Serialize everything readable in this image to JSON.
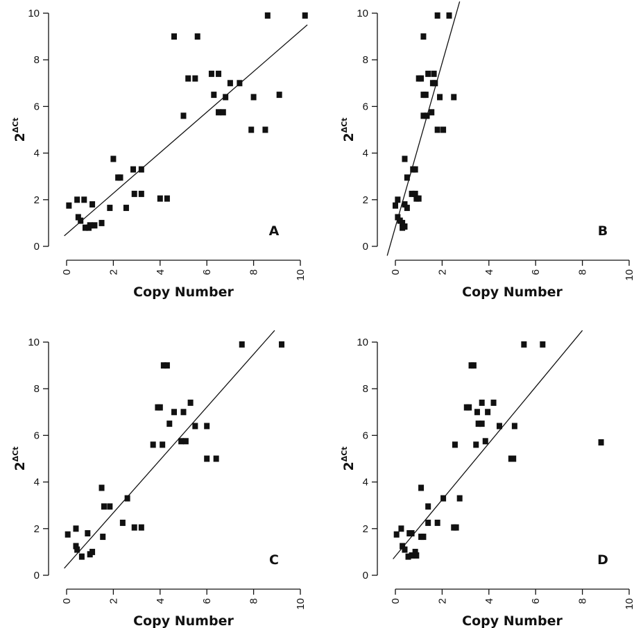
{
  "chart_data": [
    {
      "type": "scatter",
      "panel_label": "A",
      "xlabel": "Copy Number",
      "ylabel_base": "2",
      "ylabel_superscript": "ΔCt",
      "xlim": [
        0,
        10
      ],
      "ylim": [
        0,
        10
      ],
      "xticks": [
        "0",
        "2",
        "4",
        "6",
        "8",
        "10"
      ],
      "yticks": [
        "0",
        "2",
        "4",
        "6",
        "8",
        "10"
      ],
      "grid": false,
      "fit_line": {
        "x": [
          -0.1,
          10.3
        ],
        "y": [
          0.45,
          9.5
        ]
      },
      "points": [
        [
          0.1,
          1.75
        ],
        [
          0.45,
          2.0
        ],
        [
          0.5,
          1.25
        ],
        [
          0.6,
          1.1
        ],
        [
          0.75,
          2.0
        ],
        [
          0.8,
          0.8
        ],
        [
          0.95,
          0.8
        ],
        [
          1.0,
          0.9
        ],
        [
          1.1,
          1.8
        ],
        [
          1.2,
          0.9
        ],
        [
          1.5,
          1.0
        ],
        [
          1.85,
          1.65
        ],
        [
          2.0,
          3.75
        ],
        [
          2.2,
          2.95
        ],
        [
          2.3,
          2.95
        ],
        [
          2.55,
          1.65
        ],
        [
          2.85,
          3.3
        ],
        [
          2.9,
          2.25
        ],
        [
          3.2,
          3.3
        ],
        [
          3.2,
          2.25
        ],
        [
          4.0,
          2.05
        ],
        [
          4.3,
          2.05
        ],
        [
          4.6,
          9.0
        ],
        [
          5.0,
          5.6
        ],
        [
          5.2,
          7.2
        ],
        [
          5.5,
          7.2
        ],
        [
          5.6,
          9.0
        ],
        [
          6.2,
          7.4
        ],
        [
          6.3,
          6.5
        ],
        [
          6.5,
          7.4
        ],
        [
          6.5,
          5.75
        ],
        [
          6.7,
          5.75
        ],
        [
          6.8,
          6.4
        ],
        [
          7.0,
          7.0
        ],
        [
          7.4,
          7.0
        ],
        [
          7.9,
          5.0
        ],
        [
          8.0,
          6.4
        ],
        [
          8.5,
          5.0
        ],
        [
          8.6,
          9.9
        ],
        [
          9.1,
          6.5
        ],
        [
          10.2,
          9.9
        ]
      ]
    },
    {
      "type": "scatter",
      "panel_label": "B",
      "xlabel": "Copy Number",
      "ylabel_base": "2",
      "ylabel_superscript": "ΔCt",
      "xlim": [
        0,
        10
      ],
      "ylim": [
        0,
        10
      ],
      "xticks": [
        "0",
        "2",
        "4",
        "6",
        "8",
        "10"
      ],
      "yticks": [
        "0",
        "2",
        "4",
        "6",
        "8",
        "10"
      ],
      "grid": false,
      "fit_line": {
        "x": [
          -0.35,
          2.75
        ],
        "y": [
          -0.4,
          10.5
        ]
      },
      "points": [
        [
          0.0,
          1.75
        ],
        [
          0.1,
          2.0
        ],
        [
          0.1,
          1.25
        ],
        [
          0.2,
          1.1
        ],
        [
          0.3,
          0.8
        ],
        [
          0.3,
          1.0
        ],
        [
          0.4,
          1.8
        ],
        [
          0.4,
          0.85
        ],
        [
          0.4,
          3.75
        ],
        [
          0.5,
          2.95
        ],
        [
          0.5,
          1.65
        ],
        [
          0.7,
          2.25
        ],
        [
          0.75,
          3.3
        ],
        [
          0.85,
          2.25
        ],
        [
          0.85,
          3.3
        ],
        [
          0.9,
          2.05
        ],
        [
          1.0,
          2.05
        ],
        [
          1.0,
          7.2
        ],
        [
          1.1,
          7.2
        ],
        [
          1.2,
          9.0
        ],
        [
          1.2,
          6.5
        ],
        [
          1.2,
          5.6
        ],
        [
          1.3,
          6.5
        ],
        [
          1.35,
          5.6
        ],
        [
          1.4,
          7.4
        ],
        [
          1.55,
          5.75
        ],
        [
          1.6,
          7.0
        ],
        [
          1.65,
          7.4
        ],
        [
          1.7,
          7.0
        ],
        [
          1.8,
          9.9
        ],
        [
          1.8,
          5.0
        ],
        [
          1.9,
          6.4
        ],
        [
          2.05,
          5.0
        ],
        [
          2.3,
          9.9
        ],
        [
          2.5,
          6.4
        ]
      ]
    },
    {
      "type": "scatter",
      "panel_label": "C",
      "xlabel": "Copy Number",
      "ylabel_base": "2",
      "ylabel_superscript": "ΔCt",
      "xlim": [
        0,
        10
      ],
      "ylim": [
        0,
        10
      ],
      "xticks": [
        "0",
        "2",
        "4",
        "6",
        "8",
        "10"
      ],
      "yticks": [
        "0",
        "2",
        "4",
        "6",
        "8",
        "10"
      ],
      "grid": false,
      "fit_line": {
        "x": [
          -0.1,
          8.9
        ],
        "y": [
          0.3,
          10.5
        ]
      },
      "points": [
        [
          0.05,
          1.75
        ],
        [
          0.4,
          2.0
        ],
        [
          0.4,
          1.25
        ],
        [
          0.45,
          1.1
        ],
        [
          0.65,
          0.8
        ],
        [
          0.9,
          1.8
        ],
        [
          1.0,
          0.9
        ],
        [
          1.1,
          1.0
        ],
        [
          1.5,
          3.75
        ],
        [
          1.55,
          1.65
        ],
        [
          1.6,
          2.95
        ],
        [
          1.85,
          2.95
        ],
        [
          2.4,
          2.25
        ],
        [
          2.6,
          3.3
        ],
        [
          2.9,
          2.05
        ],
        [
          3.2,
          2.05
        ],
        [
          3.7,
          5.6
        ],
        [
          3.9,
          7.2
        ],
        [
          4.0,
          7.2
        ],
        [
          4.1,
          5.6
        ],
        [
          4.15,
          9.0
        ],
        [
          4.3,
          9.0
        ],
        [
          4.4,
          6.5
        ],
        [
          4.6,
          7.0
        ],
        [
          4.9,
          5.75
        ],
        [
          5.0,
          7.0
        ],
        [
          5.1,
          5.75
        ],
        [
          5.3,
          7.4
        ],
        [
          5.5,
          6.4
        ],
        [
          6.0,
          6.4
        ],
        [
          6.0,
          5.0
        ],
        [
          6.4,
          5.0
        ],
        [
          7.5,
          9.9
        ],
        [
          9.2,
          9.9
        ]
      ]
    },
    {
      "type": "scatter",
      "panel_label": "D",
      "xlabel": "Copy Number",
      "ylabel_base": "2",
      "ylabel_superscript": "ΔCt",
      "xlim": [
        0,
        10
      ],
      "ylim": [
        0,
        10
      ],
      "xticks": [
        "0",
        "2",
        "4",
        "6",
        "8",
        "10"
      ],
      "yticks": [
        "0",
        "2",
        "4",
        "6",
        "8",
        "10"
      ],
      "grid": false,
      "fit_line": {
        "x": [
          -0.1,
          8.0
        ],
        "y": [
          0.7,
          10.5
        ]
      },
      "points": [
        [
          0.05,
          1.75
        ],
        [
          0.25,
          2.0
        ],
        [
          0.3,
          1.25
        ],
        [
          0.4,
          1.1
        ],
        [
          0.55,
          0.8
        ],
        [
          0.6,
          1.8
        ],
        [
          0.7,
          1.8
        ],
        [
          0.7,
          0.85
        ],
        [
          0.85,
          1.0
        ],
        [
          0.9,
          0.85
        ],
        [
          1.1,
          3.75
        ],
        [
          1.1,
          1.65
        ],
        [
          1.2,
          1.65
        ],
        [
          1.4,
          2.95
        ],
        [
          1.4,
          2.25
        ],
        [
          1.8,
          2.25
        ],
        [
          2.05,
          3.3
        ],
        [
          2.5,
          2.05
        ],
        [
          2.55,
          5.6
        ],
        [
          2.6,
          2.05
        ],
        [
          2.75,
          3.3
        ],
        [
          3.05,
          7.2
        ],
        [
          3.15,
          7.2
        ],
        [
          3.25,
          9.0
        ],
        [
          3.35,
          9.0
        ],
        [
          3.45,
          5.6
        ],
        [
          3.5,
          7.0
        ],
        [
          3.55,
          6.5
        ],
        [
          3.7,
          6.5
        ],
        [
          3.7,
          7.4
        ],
        [
          3.85,
          5.75
        ],
        [
          3.95,
          7.0
        ],
        [
          4.2,
          7.4
        ],
        [
          4.45,
          6.4
        ],
        [
          4.95,
          5.0
        ],
        [
          5.05,
          5.0
        ],
        [
          5.1,
          6.4
        ],
        [
          5.5,
          9.9
        ],
        [
          6.3,
          9.9
        ],
        [
          8.8,
          5.7
        ]
      ]
    }
  ]
}
